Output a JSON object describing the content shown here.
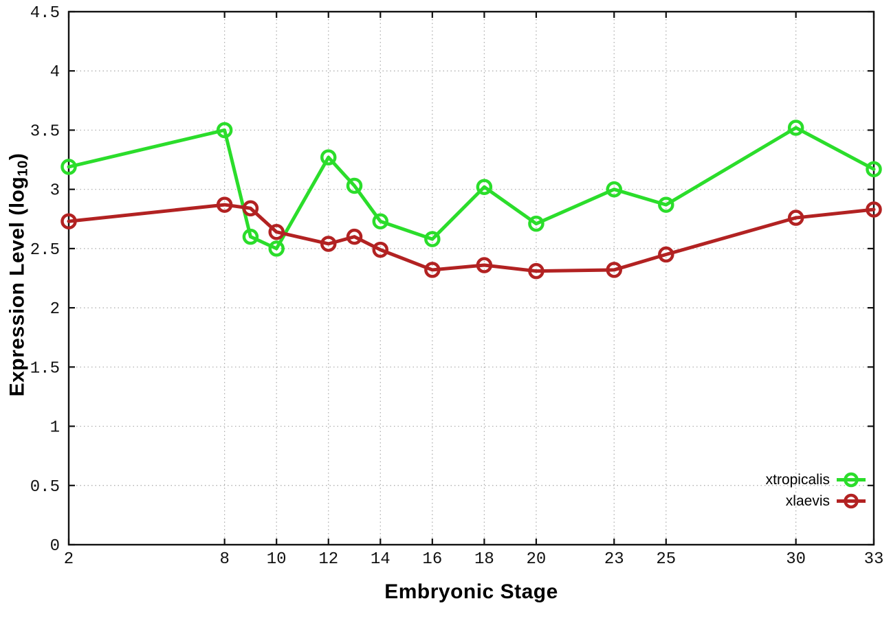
{
  "chart_data": {
    "type": "line",
    "title": "",
    "xlabel": "Embryonic Stage",
    "ylabel": {
      "prefix": "Expression Level (log",
      "sub": "10",
      "suffix": ")"
    },
    "xlim": [
      2,
      33
    ],
    "ylim": [
      0,
      4.5
    ],
    "xticks": [
      2,
      8,
      10,
      12,
      14,
      16,
      18,
      20,
      23,
      25,
      30,
      33
    ],
    "xtick_labels": [
      "2",
      "8",
      "10",
      "12",
      "14",
      "16",
      "18",
      "20",
      "23",
      "25",
      "30",
      "33"
    ],
    "yticks": [
      0,
      0.5,
      1,
      1.5,
      2,
      2.5,
      3,
      3.5,
      4,
      4.5
    ],
    "ytick_labels": [
      "0",
      "0.5",
      "1",
      "1.5",
      "2",
      "2.5",
      "3",
      "3.5",
      "4",
      "4.5"
    ],
    "grid": true,
    "grid_style": "dotted",
    "legend_position": "inside-bottom-right",
    "x": [
      2,
      8,
      9,
      10,
      12,
      13,
      14,
      16,
      18,
      20,
      23,
      25,
      30,
      33
    ],
    "series": [
      {
        "name": "xtropicalis",
        "color": "#2BDD2B",
        "marker": "open-circle",
        "values": [
          3.19,
          3.5,
          2.6,
          2.5,
          3.27,
          3.03,
          2.73,
          2.58,
          3.02,
          2.71,
          3.0,
          2.87,
          3.52,
          3.17
        ]
      },
      {
        "name": "xlaevis",
        "color": "#B22222",
        "marker": "open-circle",
        "values": [
          2.73,
          2.87,
          2.84,
          2.64,
          2.54,
          2.6,
          2.49,
          2.32,
          2.36,
          2.31,
          2.32,
          2.45,
          2.76,
          2.83
        ]
      }
    ],
    "style_colors": {
      "border": "#111111",
      "tick": "#111111",
      "grid": "#a8a8a8",
      "tick_label": "#111111",
      "background": "#ffffff"
    }
  }
}
